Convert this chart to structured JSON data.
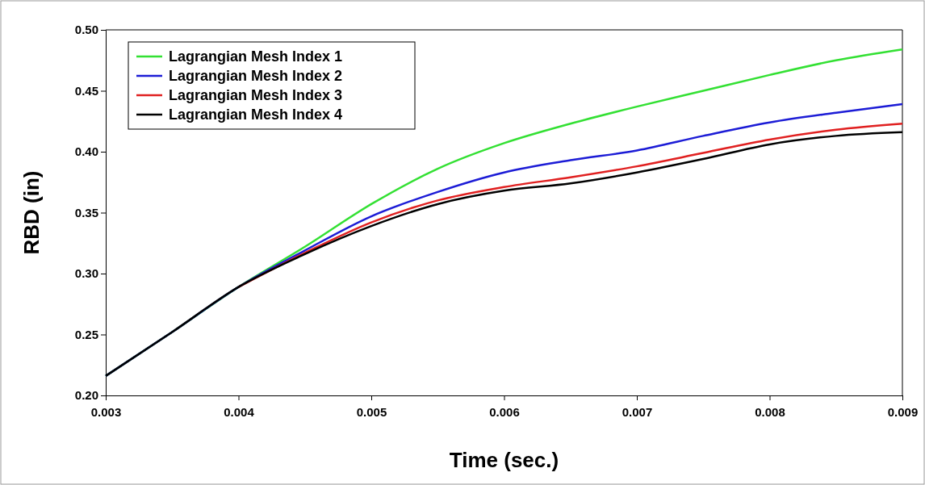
{
  "chart_data": {
    "type": "line",
    "xlabel": "Time (sec.)",
    "ylabel": "RBD (in)",
    "x": [
      0.003,
      0.0035,
      0.004,
      0.0045,
      0.005,
      0.0055,
      0.006,
      0.0065,
      0.007,
      0.0075,
      0.008,
      0.0085,
      0.009
    ],
    "series": [
      {
        "name": "Lagrangian Mesh Index 1",
        "color": "#33e033",
        "values": [
          0.216,
          0.252,
          0.289,
          0.322,
          0.357,
          0.386,
          0.407,
          0.423,
          0.437,
          0.45,
          0.463,
          0.475,
          0.484
        ]
      },
      {
        "name": "Lagrangian Mesh Index 2",
        "color": "#1c1cd6",
        "values": [
          0.216,
          0.252,
          0.289,
          0.319,
          0.347,
          0.367,
          0.383,
          0.393,
          0.401,
          0.413,
          0.424,
          0.432,
          0.439
        ]
      },
      {
        "name": "Lagrangian Mesh Index 3",
        "color": "#e02020",
        "values": [
          null,
          null,
          0.289,
          0.317,
          0.342,
          0.36,
          0.371,
          0.379,
          0.388,
          0.399,
          0.41,
          0.418,
          0.423
        ]
      },
      {
        "name": "Lagrangian Mesh Index 4",
        "color": "#000000",
        "values": [
          0.216,
          0.252,
          0.289,
          0.316,
          0.339,
          0.357,
          0.368,
          0.374,
          0.383,
          0.394,
          0.406,
          0.413,
          0.416
        ]
      }
    ],
    "xlim": [
      0.003,
      0.009
    ],
    "xticks": [
      0.003,
      0.004,
      0.005,
      0.006,
      0.007,
      0.008,
      0.009
    ],
    "ylim": [
      0.2,
      0.5
    ],
    "yticks": [
      {
        "value": 0.2,
        "label": "0.20"
      },
      0.25,
      {
        "value": 0.3,
        "label": "0.30"
      },
      0.35,
      {
        "value": 0.4,
        "label": "0.40"
      },
      0.45,
      {
        "value": 0.5,
        "label": "0.50"
      }
    ],
    "grid": false,
    "legend": "top left",
    "marker": "none",
    "line_style": "solid"
  }
}
